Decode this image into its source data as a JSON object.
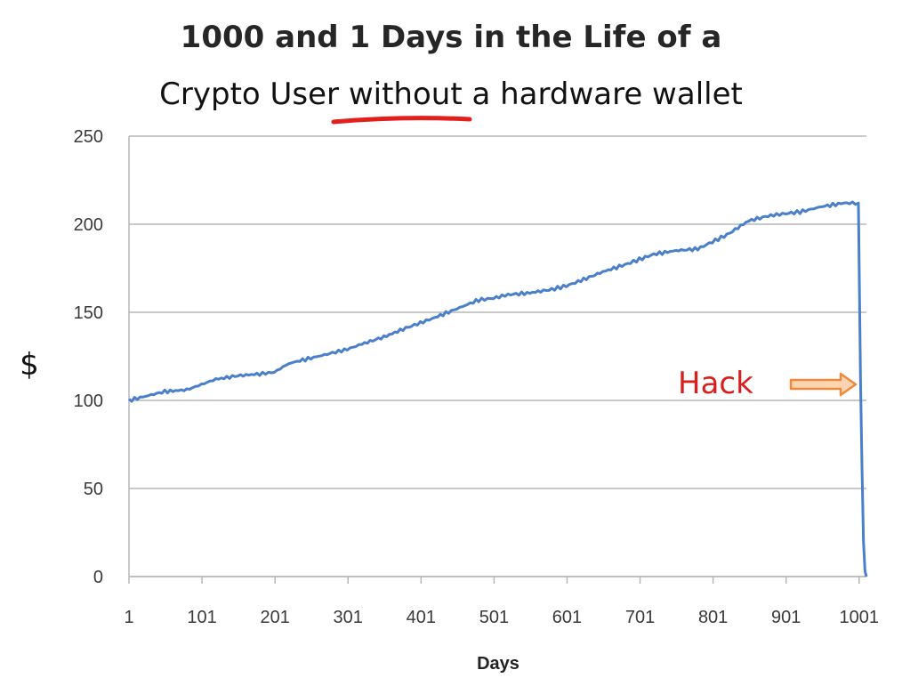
{
  "title_line1": "1000 and 1 Days in the Life of a",
  "title_line2": {
    "before": "Crypto User ",
    "emphasis": "without",
    "after": " a hardware wallet"
  },
  "colors": {
    "line": "#4a7fcc",
    "underline": "#e1201e",
    "annotation_text": "#d91e1e",
    "arrow": "#ee8a3c",
    "grid": "#b7b7b7",
    "axis_text": "#3a3a3a"
  },
  "annotation": {
    "text": "Hack",
    "arrow": "right-arrow"
  },
  "chart_data": {
    "type": "line",
    "xlabel": "Days",
    "ylabel": "$",
    "xlim": [
      1,
      1011
    ],
    "ylim": [
      0,
      250
    ],
    "x_ticks": [
      1,
      101,
      201,
      301,
      401,
      501,
      601,
      701,
      801,
      901,
      1001
    ],
    "y_ticks": [
      0,
      50,
      100,
      150,
      200,
      250
    ],
    "grid": "horizontal",
    "series": [
      {
        "x": [
          1,
          20,
          50,
          80,
          100,
          120,
          150,
          180,
          200,
          220,
          250,
          280,
          300,
          320,
          350,
          380,
          400,
          420,
          450,
          480,
          500,
          520,
          550,
          580,
          600,
          620,
          650,
          680,
          700,
          720,
          750,
          780,
          800,
          820,
          850,
          880,
          900,
          920,
          950,
          980,
          1000,
          1003,
          1005,
          1007,
          1009,
          1011
        ],
        "y": [
          100,
          102,
          105,
          106,
          109,
          112,
          114,
          115,
          116,
          121,
          124,
          127,
          129,
          132,
          136,
          141,
          144,
          147,
          152,
          157,
          158,
          160,
          161,
          163,
          165,
          168,
          173,
          177,
          180,
          183,
          185,
          186,
          190,
          194,
          202,
          205,
          206,
          207,
          210,
          212,
          212,
          110,
          60,
          20,
          3,
          0
        ]
      }
    ]
  }
}
